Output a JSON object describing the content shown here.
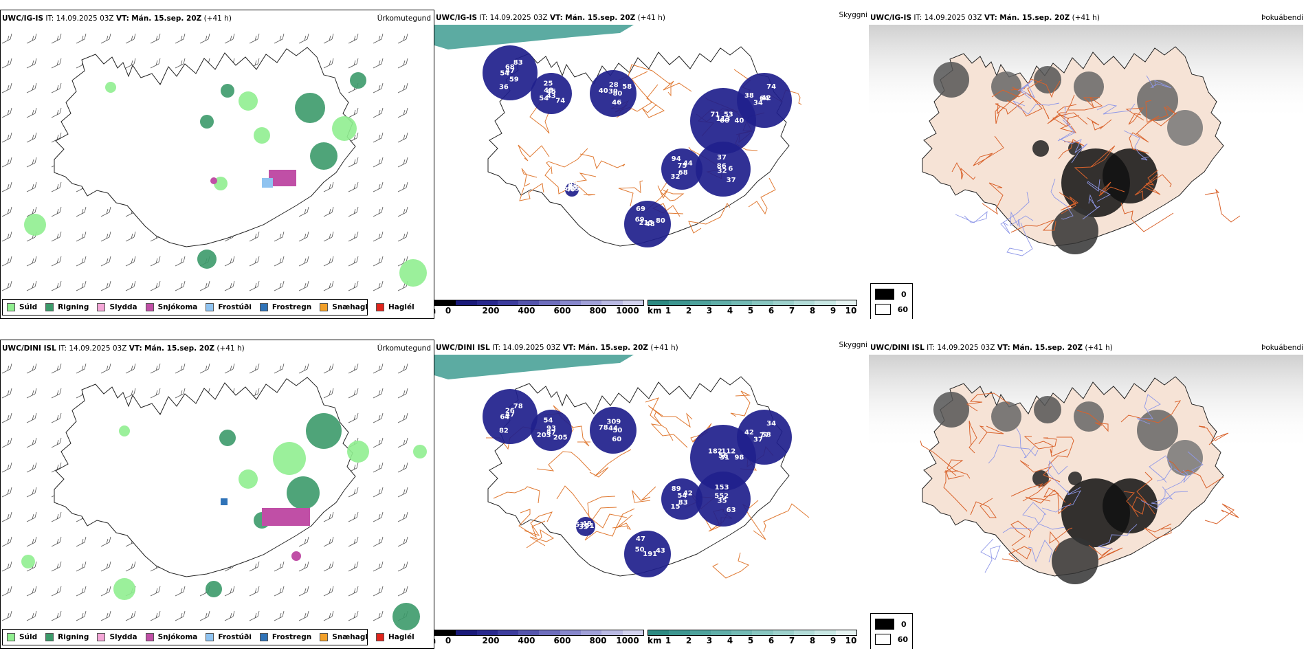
{
  "rows": [
    {
      "model": "UWC/IG-IS",
      "it_label": "IT:",
      "it_value": "14.09.2025 03Z",
      "vt_label": "VT:",
      "vt_value": "Mán. 15.sep. 20Z",
      "lead": "(+41 h)",
      "precip_title": "Úrkomutegund",
      "cloud_title": "Skyggni",
      "fog_title": "Þokuábendi",
      "cloud_numbers": [
        "47",
        "54",
        "28",
        "60",
        "38",
        "44",
        "32",
        "69",
        "15",
        "54",
        "45",
        "46",
        "71",
        "42",
        "32",
        "37",
        "48",
        "57",
        "83",
        "43",
        "39",
        "40",
        "34",
        "75",
        "37",
        "69",
        "65",
        "36",
        "25",
        "80",
        "113",
        "74",
        "68",
        "86",
        "80",
        "40",
        "68",
        "74",
        "40",
        "53",
        "64",
        "94",
        "6",
        "215",
        "49",
        "59",
        "48",
        "58"
      ],
      "fog_max": "0",
      "fog_min": "60"
    },
    {
      "model": "UWC/DINI ISL",
      "it_label": "IT:",
      "it_value": "14.09.2025 03Z",
      "vt_label": "VT:",
      "vt_value": "Mán. 15.sep. 20Z",
      "lead": "(+41 h)",
      "precip_title": "Úrkomutegund",
      "cloud_title": "Skyggni",
      "fog_title": "Þokuábendi",
      "cloud_numbers": [
        "47",
        "203",
        "309",
        "31",
        "42",
        "42",
        "35",
        "47",
        "51",
        "64",
        "93",
        "60",
        "182",
        "58",
        "15",
        "153",
        "191",
        "51",
        "78",
        "87",
        "44",
        "98",
        "37",
        "54",
        "63",
        "50",
        "48",
        "82",
        "54",
        "50",
        "56",
        "34",
        "83",
        "552",
        "43",
        "35",
        "26",
        "205",
        "78",
        "112",
        "77",
        "89"
      ],
      "fog_max": "0",
      "fog_min": "60"
    }
  ],
  "precip_legend": [
    {
      "label": "Súld",
      "color": "#90ee90"
    },
    {
      "label": "Rigning",
      "color": "#3c9a6a"
    },
    {
      "label": "Slydda",
      "color": "#f4a6d7"
    },
    {
      "label": "Snjókoma",
      "color": "#c04fa6"
    },
    {
      "label": "Frostúði",
      "color": "#8fc3f0"
    },
    {
      "label": "Frostregn",
      "color": "#2f73b8"
    },
    {
      "label": "Snæhagl",
      "color": "#f2a02a"
    },
    {
      "label": "Haglél",
      "color": "#e0241c"
    }
  ],
  "cloud_scale": {
    "unit": "m",
    "ticks": [
      "0",
      "200",
      "400",
      "600",
      "800",
      "1000"
    ],
    "colors": [
      "#000000",
      "#1a1a7a",
      "#28288e",
      "#3d3d9e",
      "#5555ad",
      "#6e6ebd",
      "#8787cc",
      "#a0a0d8",
      "#b9b9e3",
      "#d2d2ee"
    ]
  },
  "vis_scale": {
    "unit": "km",
    "ticks": [
      "1",
      "2",
      "3",
      "4",
      "5",
      "6",
      "7",
      "8",
      "9",
      "10"
    ],
    "colors": [
      "#2d8a82",
      "#3d9690",
      "#4ea29c",
      "#60aea8",
      "#73bab4",
      "#88c6c0",
      "#9dd1cc",
      "#b3dcd8",
      "#c9e8e4",
      "#e6f4f2"
    ]
  },
  "colors": {
    "land_outline": "#222222",
    "glacier_white": "#ffffff",
    "fog_land": "#f6e3d6",
    "roads": "#d9622b",
    "rivers": "#8f98e8",
    "low_cloud": "#1f1f8c",
    "vis_teal": "#3f9c92"
  }
}
